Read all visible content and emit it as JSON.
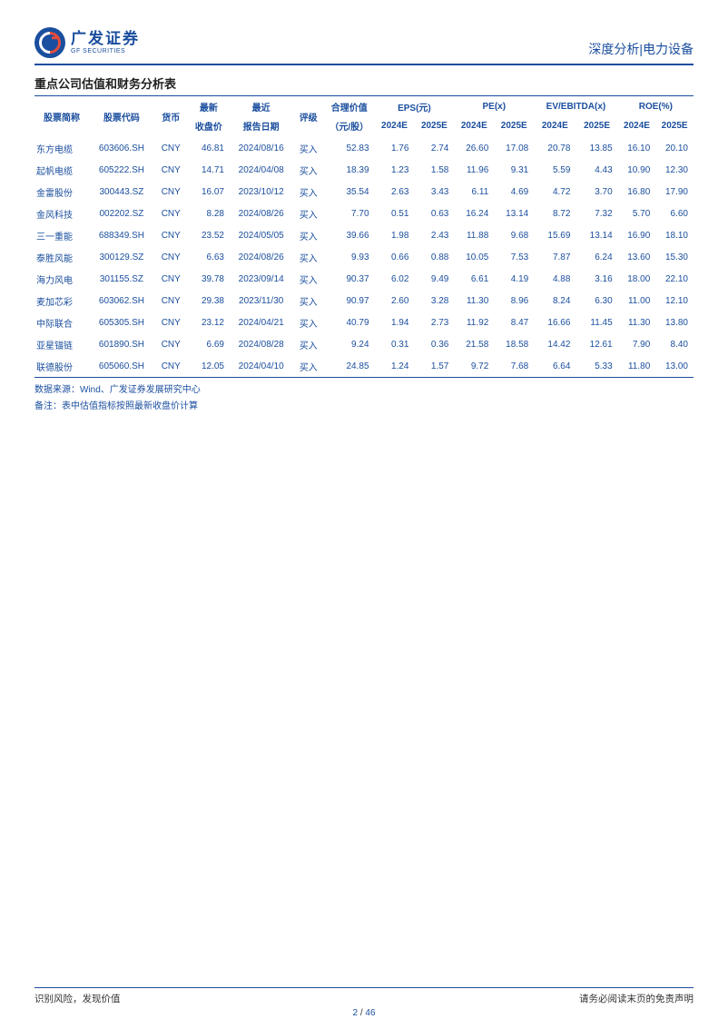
{
  "header": {
    "logo_cn": "广发证券",
    "logo_en": "GF SECURITIES",
    "right": "深度分析|电力设备"
  },
  "title": "重点公司估值和财务分析表",
  "columns": {
    "name": "股票简称",
    "code": "股票代码",
    "ccy": "货币",
    "close": "最新",
    "close2": "收盘价",
    "rptdate": "最近",
    "rptdate2": "报告日期",
    "rating": "评级",
    "fair": "合理价值",
    "fair2": "（元/股）",
    "eps": "EPS(元)",
    "pe": "PE(x)",
    "ev": "EV/EBITDA(x)",
    "roe": "ROE(%)",
    "y24": "2024E",
    "y25": "2025E"
  },
  "rows": [
    {
      "name": "东方电缆",
      "code": "603606.SH",
      "ccy": "CNY",
      "close": "46.81",
      "rpt": "2024/08/16",
      "rating": "买入",
      "fair": "52.83",
      "eps24": "1.76",
      "eps25": "2.74",
      "pe24": "26.60",
      "pe25": "17.08",
      "ev24": "20.78",
      "ev25": "13.85",
      "roe24": "16.10",
      "roe25": "20.10"
    },
    {
      "name": "起帆电缆",
      "code": "605222.SH",
      "ccy": "CNY",
      "close": "14.71",
      "rpt": "2024/04/08",
      "rating": "买入",
      "fair": "18.39",
      "eps24": "1.23",
      "eps25": "1.58",
      "pe24": "11.96",
      "pe25": "9.31",
      "ev24": "5.59",
      "ev25": "4.43",
      "roe24": "10.90",
      "roe25": "12.30"
    },
    {
      "name": "金雷股份",
      "code": "300443.SZ",
      "ccy": "CNY",
      "close": "16.07",
      "rpt": "2023/10/12",
      "rating": "买入",
      "fair": "35.54",
      "eps24": "2.63",
      "eps25": "3.43",
      "pe24": "6.11",
      "pe25": "4.69",
      "ev24": "4.72",
      "ev25": "3.70",
      "roe24": "16.80",
      "roe25": "17.90"
    },
    {
      "name": "金风科技",
      "code": "002202.SZ",
      "ccy": "CNY",
      "close": "8.28",
      "rpt": "2024/08/26",
      "rating": "买入",
      "fair": "7.70",
      "eps24": "0.51",
      "eps25": "0.63",
      "pe24": "16.24",
      "pe25": "13.14",
      "ev24": "8.72",
      "ev25": "7.32",
      "roe24": "5.70",
      "roe25": "6.60"
    },
    {
      "name": "三一重能",
      "code": "688349.SH",
      "ccy": "CNY",
      "close": "23.52",
      "rpt": "2024/05/05",
      "rating": "买入",
      "fair": "39.66",
      "eps24": "1.98",
      "eps25": "2.43",
      "pe24": "11.88",
      "pe25": "9.68",
      "ev24": "15.69",
      "ev25": "13.14",
      "roe24": "16.90",
      "roe25": "18.10"
    },
    {
      "name": "泰胜风能",
      "code": "300129.SZ",
      "ccy": "CNY",
      "close": "6.63",
      "rpt": "2024/08/26",
      "rating": "买入",
      "fair": "9.93",
      "eps24": "0.66",
      "eps25": "0.88",
      "pe24": "10.05",
      "pe25": "7.53",
      "ev24": "7.87",
      "ev25": "6.24",
      "roe24": "13.60",
      "roe25": "15.30"
    },
    {
      "name": "海力风电",
      "code": "301155.SZ",
      "ccy": "CNY",
      "close": "39.78",
      "rpt": "2023/09/14",
      "rating": "买入",
      "fair": "90.37",
      "eps24": "6.02",
      "eps25": "9.49",
      "pe24": "6.61",
      "pe25": "4.19",
      "ev24": "4.88",
      "ev25": "3.16",
      "roe24": "18.00",
      "roe25": "22.10"
    },
    {
      "name": "麦加芯彩",
      "code": "603062.SH",
      "ccy": "CNY",
      "close": "29.38",
      "rpt": "2023/11/30",
      "rating": "买入",
      "fair": "90.97",
      "eps24": "2.60",
      "eps25": "3.28",
      "pe24": "11.30",
      "pe25": "8.96",
      "ev24": "8.24",
      "ev25": "6.30",
      "roe24": "11.00",
      "roe25": "12.10"
    },
    {
      "name": "中际联合",
      "code": "605305.SH",
      "ccy": "CNY",
      "close": "23.12",
      "rpt": "2024/04/21",
      "rating": "买入",
      "fair": "40.79",
      "eps24": "1.94",
      "eps25": "2.73",
      "pe24": "11.92",
      "pe25": "8.47",
      "ev24": "16.66",
      "ev25": "11.45",
      "roe24": "11.30",
      "roe25": "13.80"
    },
    {
      "name": "亚星锚链",
      "code": "601890.SH",
      "ccy": "CNY",
      "close": "6.69",
      "rpt": "2024/08/28",
      "rating": "买入",
      "fair": "9.24",
      "eps24": "0.31",
      "eps25": "0.36",
      "pe24": "21.58",
      "pe25": "18.58",
      "ev24": "14.42",
      "ev25": "12.61",
      "roe24": "7.90",
      "roe25": "8.40"
    },
    {
      "name": "联德股份",
      "code": "605060.SH",
      "ccy": "CNY",
      "close": "12.05",
      "rpt": "2024/04/10",
      "rating": "买入",
      "fair": "24.85",
      "eps24": "1.24",
      "eps25": "1.57",
      "pe24": "9.72",
      "pe25": "7.68",
      "ev24": "6.64",
      "ev25": "5.33",
      "roe24": "11.80",
      "roe25": "13.00"
    }
  ],
  "notes": {
    "source": "数据来源：Wind、广发证券发展研究中心",
    "remark": "备注：表中估值指标按照最新收盘价计算"
  },
  "footer": {
    "left": "识别风险，发现价值",
    "right": "请务必阅读末页的免责声明",
    "page_current": "2",
    "page_sep": " / ",
    "page_total": "46"
  }
}
